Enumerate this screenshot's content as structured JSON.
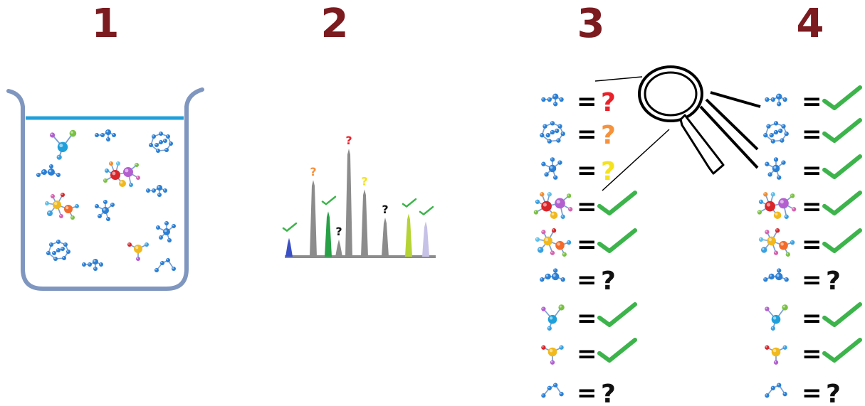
{
  "steps": [
    {
      "number": "1"
    },
    {
      "number": "2"
    },
    {
      "number": "3"
    },
    {
      "number": "4"
    }
  ],
  "symbols": {
    "equals": "=",
    "unknown": "?"
  },
  "colors": {
    "step_number": "#7b1a1f",
    "beaker_outline": "#7f96bf",
    "liquid_surface": "#1fa0db",
    "molecule_blue": "#2a7fd4",
    "check_green": "#3cb44b",
    "unknown_black": "#111111",
    "unknown_red": "#e8212a",
    "unknown_orange": "#f6913c",
    "unknown_yellow": "#f4e21d",
    "chromatogram_gray": "#8c8c8c"
  },
  "chromatogram": {
    "peaks": [
      {
        "height": 0.24,
        "color": "#3a4fc4",
        "label": "check",
        "label_color": "#3cb44b"
      },
      {
        "height": 0.98,
        "color": "#8c8c8c",
        "label": "?",
        "label_color": "#f6913c"
      },
      {
        "height": 0.58,
        "color": "#27a046",
        "label": "check",
        "label_color": "#3cb44b"
      },
      {
        "height": 0.22,
        "color": "#8c8c8c",
        "label": "?",
        "label_color": "#111111"
      },
      {
        "height": 1.38,
        "color": "#8c8c8c",
        "label": "?",
        "label_color": "#e8212a"
      },
      {
        "height": 0.86,
        "color": "#8c8c8c",
        "label": "?",
        "label_color": "#f4e21d"
      },
      {
        "height": 0.5,
        "color": "#8c8c8c",
        "label": "?",
        "label_color": "#111111"
      },
      {
        "height": 0.55,
        "color": "#b5d335",
        "label": "check",
        "label_color": "#3cb44b"
      },
      {
        "height": 0.45,
        "color": "#c6c1e6",
        "label": "check",
        "label_color": "#3cb44b"
      }
    ]
  },
  "identification_lists": {
    "step3": [
      {
        "molecule": "small-branched",
        "status": "?",
        "status_color": "#e8212a"
      },
      {
        "molecule": "ring-cluster",
        "status": "?",
        "status_color": "#f6913c"
      },
      {
        "molecule": "star-blue",
        "status": "?",
        "status_color": "#f4e21d"
      },
      {
        "molecule": "multicolor-large",
        "status": "check"
      },
      {
        "molecule": "multicolor-medium",
        "status": "check"
      },
      {
        "molecule": "small-chain",
        "status": "?",
        "status_color": "#111111"
      },
      {
        "molecule": "tri-color",
        "status": "check"
      },
      {
        "molecule": "yellow-center",
        "status": "check"
      },
      {
        "molecule": "bent-chain",
        "status": "?",
        "status_color": "#111111"
      }
    ],
    "step4": [
      {
        "molecule": "small-branched",
        "status": "check"
      },
      {
        "molecule": "ring-cluster",
        "status": "check"
      },
      {
        "molecule": "star-blue",
        "status": "check"
      },
      {
        "molecule": "multicolor-large",
        "status": "check"
      },
      {
        "molecule": "multicolor-medium",
        "status": "check"
      },
      {
        "molecule": "small-chain",
        "status": "?",
        "status_color": "#111111"
      },
      {
        "molecule": "tri-color",
        "status": "check"
      },
      {
        "molecule": "yellow-center",
        "status": "check"
      },
      {
        "molecule": "bent-chain",
        "status": "?",
        "status_color": "#111111"
      }
    ]
  }
}
